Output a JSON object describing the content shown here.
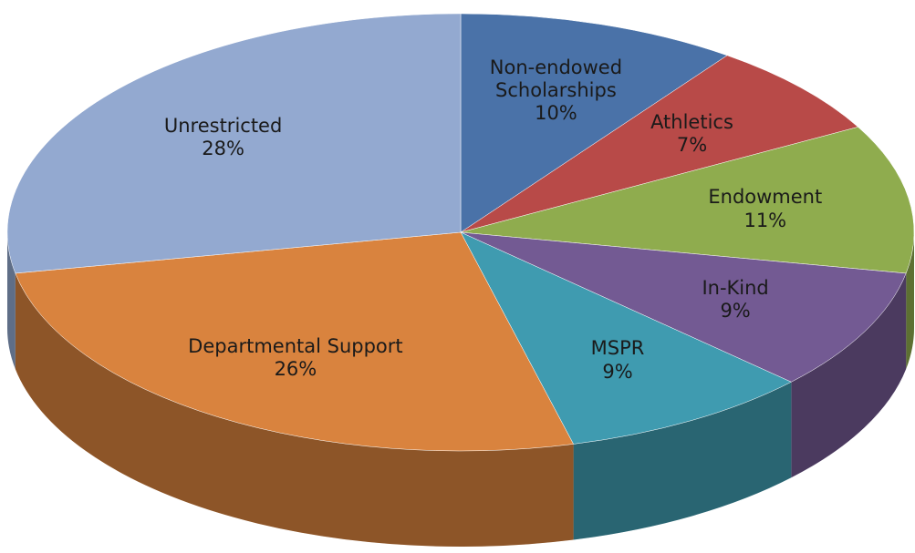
{
  "chart_data": {
    "type": "pie3d",
    "categories": [
      "Non-endowed Scholarships",
      "Athletics",
      "Endowment",
      "In-Kind",
      "MSPR",
      "Departmental Support",
      "Unrestricted"
    ],
    "values": [
      10,
      7,
      11,
      9,
      9,
      26,
      28
    ],
    "value_labels": [
      "10%",
      "7%",
      "11%",
      "9%",
      "9%",
      "26%",
      "28%"
    ],
    "colors": [
      "#4a72a8",
      "#b84a48",
      "#8fac4e",
      "#735a93",
      "#3f9bb0",
      "#d9833e",
      "#93a9d0"
    ]
  }
}
